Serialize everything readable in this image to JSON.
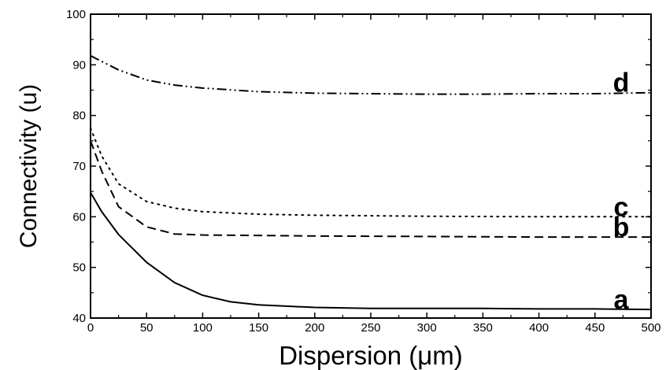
{
  "chart_data": {
    "type": "line",
    "xlabel": "Dispersion (μm)",
    "ylabel": "Connectivity (u)",
    "xlim": [
      0,
      500
    ],
    "ylim": [
      40,
      100
    ],
    "xticks": [
      0,
      50,
      100,
      150,
      200,
      250,
      300,
      350,
      400,
      450,
      500
    ],
    "yticks": [
      40,
      50,
      60,
      70,
      80,
      90,
      100
    ],
    "grid": false,
    "series": [
      {
        "name": "a",
        "line_style": "solid",
        "color": "#000000",
        "x": [
          0,
          10,
          25,
          50,
          75,
          100,
          125,
          150,
          200,
          250,
          300,
          350,
          400,
          450,
          500
        ],
        "y": [
          64.8,
          61.0,
          56.5,
          51.0,
          47.0,
          44.5,
          43.2,
          42.6,
          42.1,
          41.9,
          41.9,
          41.9,
          41.8,
          41.8,
          41.7
        ]
      },
      {
        "name": "b",
        "line_style": "dashed",
        "color": "#000000",
        "x": [
          0,
          10,
          25,
          50,
          75,
          100,
          150,
          200,
          300,
          400,
          500
        ],
        "y": [
          75.0,
          69.0,
          62.0,
          58.0,
          56.6,
          56.4,
          56.3,
          56.2,
          56.1,
          56.0,
          56.0
        ]
      },
      {
        "name": "c",
        "line_style": "dotted",
        "color": "#000000",
        "x": [
          0,
          10,
          25,
          50,
          75,
          100,
          150,
          200,
          300,
          400,
          500
        ],
        "y": [
          77.5,
          72.0,
          66.5,
          63.0,
          61.7,
          61.0,
          60.5,
          60.3,
          60.1,
          60.0,
          60.0
        ]
      },
      {
        "name": "d",
        "line_style": "dash-dot-dot",
        "color": "#000000",
        "x": [
          0,
          25,
          50,
          75,
          100,
          150,
          200,
          250,
          300,
          350,
          400,
          450,
          500
        ],
        "y": [
          91.8,
          89.0,
          87.0,
          86.0,
          85.4,
          84.7,
          84.4,
          84.3,
          84.2,
          84.2,
          84.3,
          84.3,
          84.5
        ]
      }
    ]
  }
}
